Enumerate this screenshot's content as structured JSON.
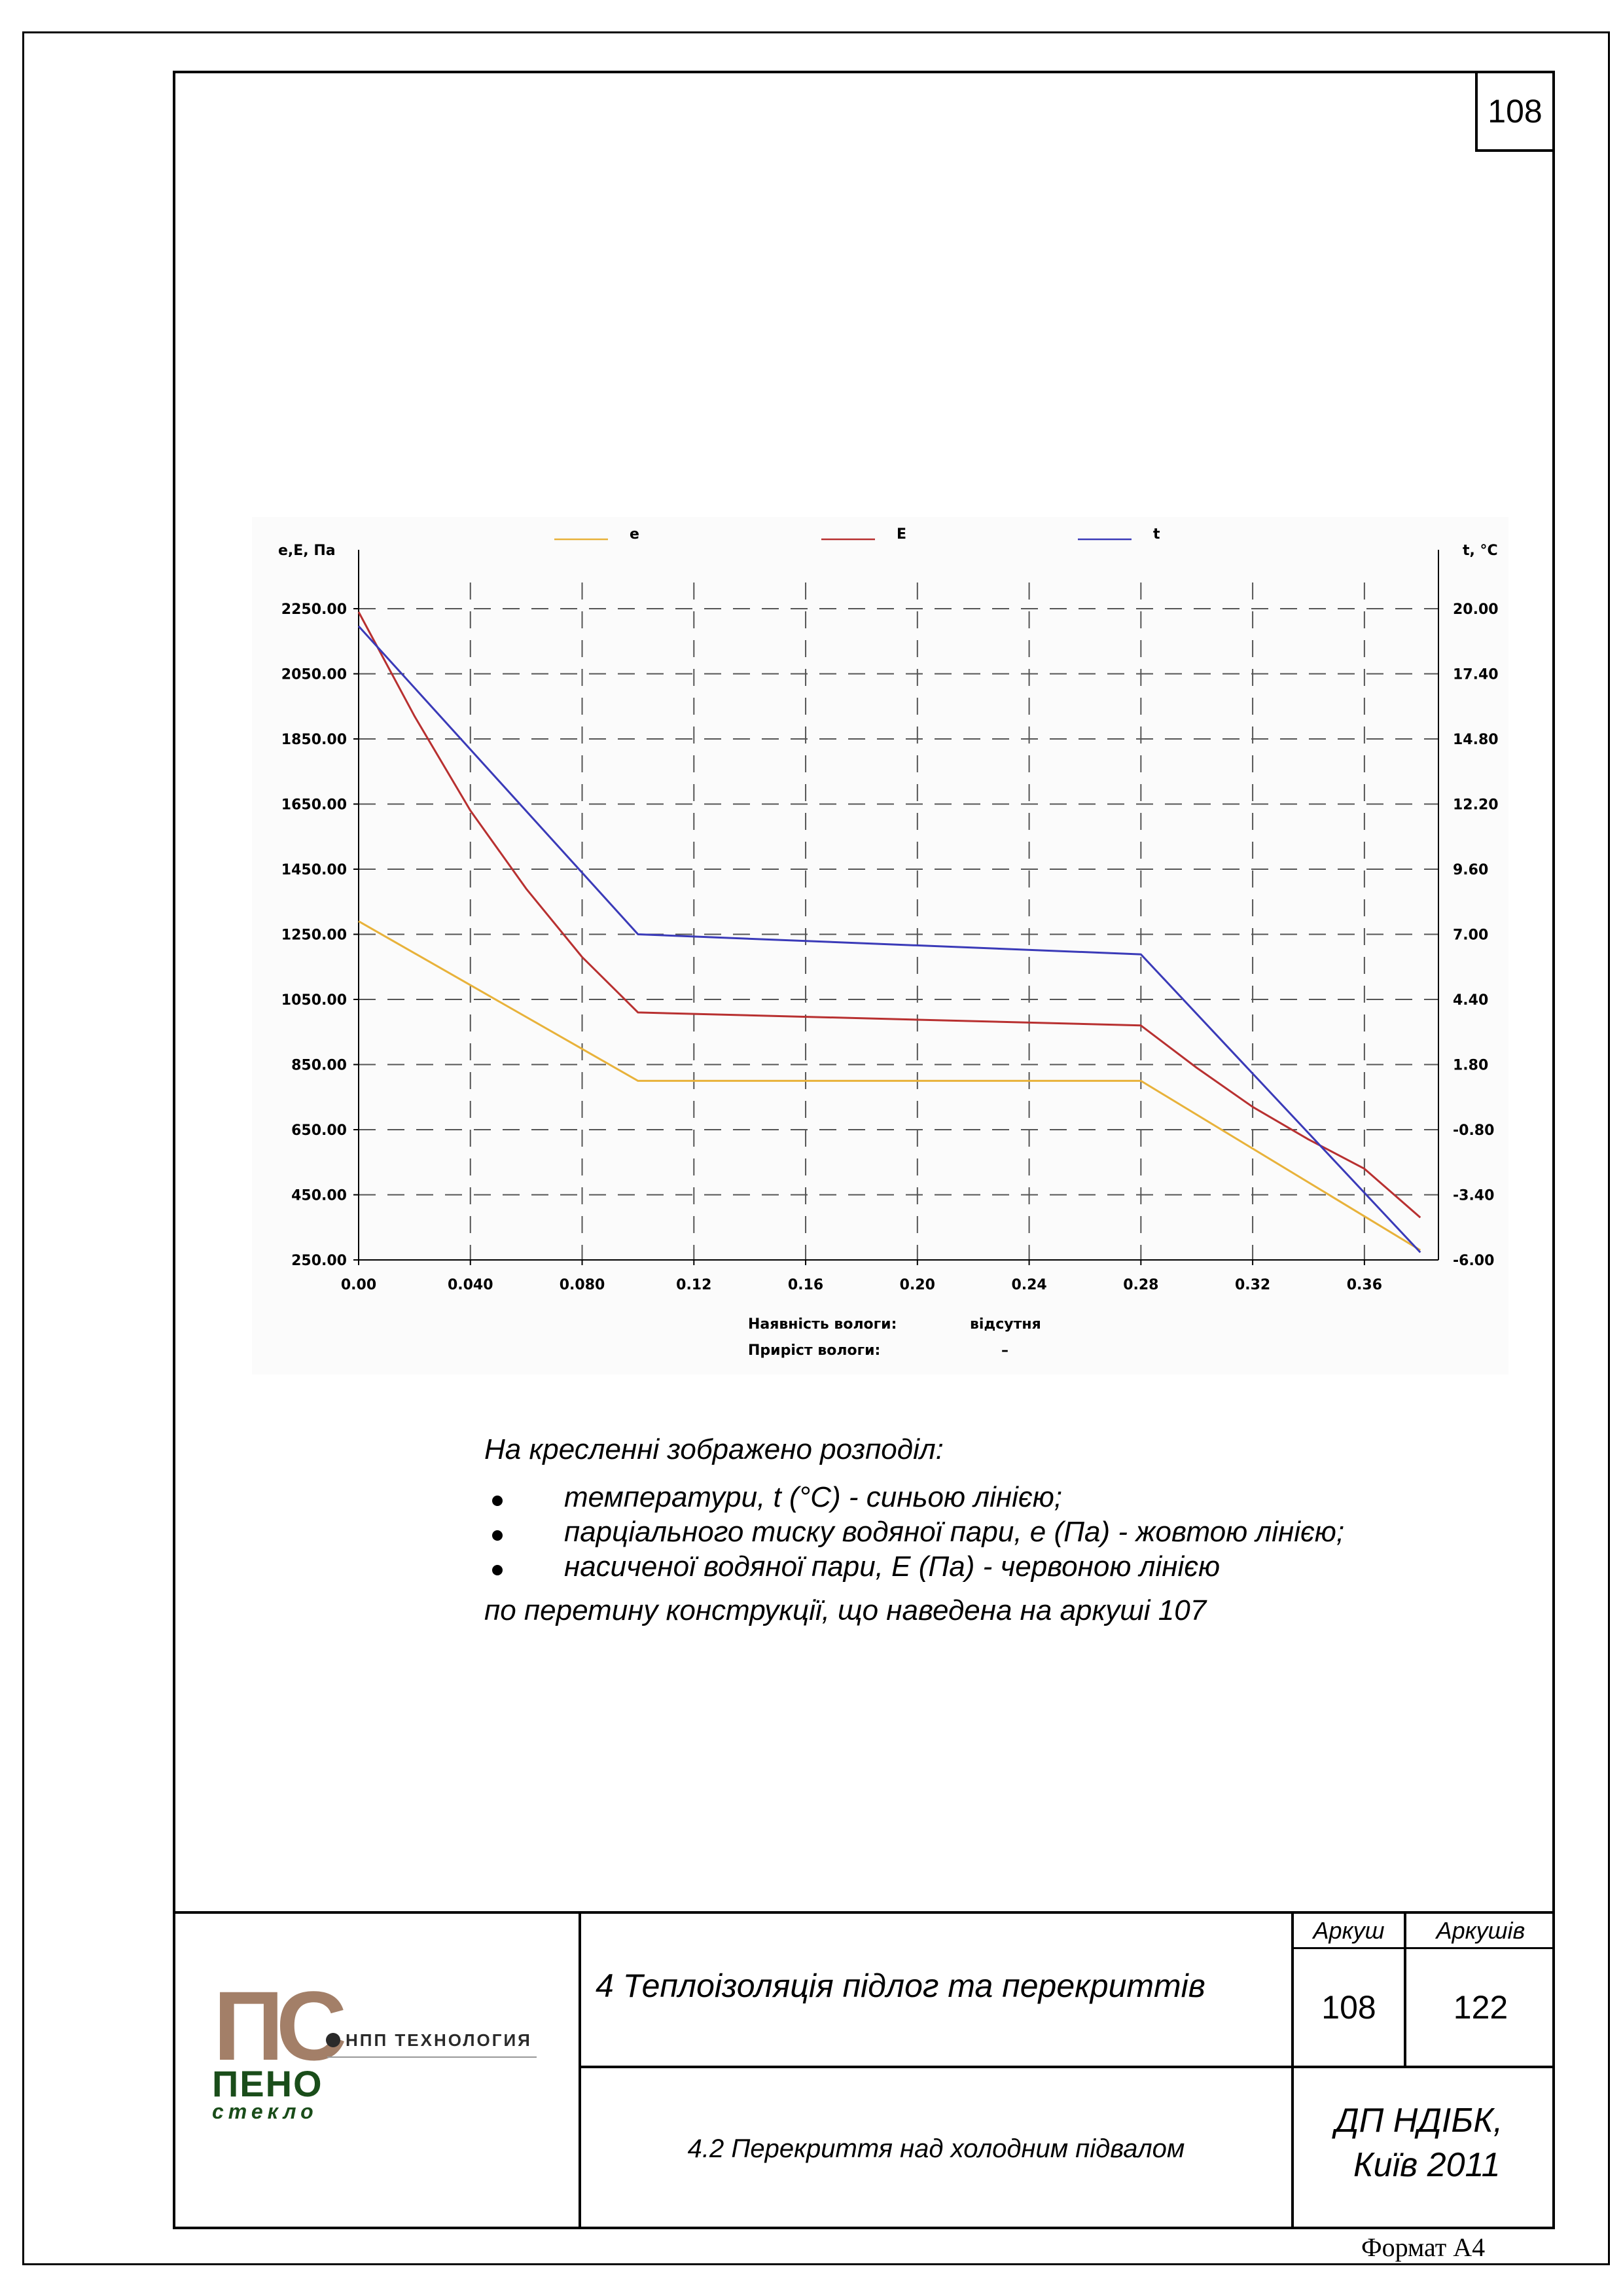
{
  "page": {
    "number": "108",
    "format_label": "Формат А4"
  },
  "description": {
    "intro": "На кресленні зображено розподіл:",
    "items": [
      "температури, t (°C) - синьою лінією;",
      "парціального тиску водяної пари, e (Па) - жовтою лінією;",
      "насиченої водяної пари, E (Па) - червоною лінією"
    ],
    "outro": "по перетину конструкції, що наведена на аркуші 107"
  },
  "title_block": {
    "section_title": "4 Теплоізоляція підлог та перекриттів",
    "subsection_title": "4.2 Перекриття над холодним підвалом",
    "sheet_label": "Аркуш",
    "sheets_label": "Аркушів",
    "sheet_value": "108",
    "sheets_value": "122",
    "org_line1": "ДП НДІБК,",
    "org_line2": "Київ 2011",
    "logo": {
      "monogram": "ПС",
      "company": "НПП ТЕХНОЛОГИЯ",
      "brand": "ПЕНО",
      "brand_sub": "стекло",
      "colors": {
        "monogram": "#a37f68",
        "brand": "#1a4d1a",
        "text": "#2a2a2a"
      }
    }
  },
  "chart_data": {
    "type": "line",
    "left_axis_label": "e,E, Па",
    "right_axis_label": "t, °C",
    "x_ticks": [
      "0.00",
      "0.040",
      "0.080",
      "0.12",
      "0.16",
      "0.20",
      "0.24",
      "0.28",
      "0.32",
      "0.36"
    ],
    "y_left_ticks": [
      "2250.00",
      "2050.00",
      "1850.00",
      "1650.00",
      "1450.00",
      "1250.00",
      "1050.00",
      "850.00",
      "650.00",
      "450.00",
      "250.00"
    ],
    "y_right_ticks": [
      "20.00",
      "17.40",
      "14.80",
      "12.20",
      "9.60",
      "7.00",
      "4.40",
      "1.80",
      "-0.80",
      "-3.40",
      "-6.00"
    ],
    "xlim": [
      0,
      0.3865
    ],
    "ylim_left": [
      250,
      2250
    ],
    "ylim_right": [
      -6,
      20
    ],
    "grid": true,
    "legend_position": "top",
    "series": [
      {
        "name": "e",
        "axis": "left",
        "color": "#e8b23a",
        "x": [
          0.0,
          0.1,
          0.28,
          0.38
        ],
        "y": [
          1290,
          800,
          800,
          280
        ]
      },
      {
        "name": "E",
        "axis": "left",
        "color": "#b83030",
        "x": [
          0.0,
          0.02,
          0.04,
          0.06,
          0.08,
          0.1,
          0.28,
          0.3,
          0.32,
          0.34,
          0.36,
          0.38
        ],
        "y": [
          2240,
          1920,
          1630,
          1390,
          1180,
          1010,
          970,
          840,
          720,
          620,
          530,
          380
        ]
      },
      {
        "name": "t",
        "axis": "right",
        "color": "#3a3ab8",
        "x": [
          0.0,
          0.1,
          0.28,
          0.38
        ],
        "y": [
          19.3,
          7.0,
          6.2,
          -5.7
        ]
      }
    ],
    "footer": {
      "moisture_presence_label": "Наявність вологи:",
      "moisture_presence_value": "відсутня",
      "moisture_gain_label": "Приріст вологи:",
      "moisture_gain_value": "–"
    }
  }
}
